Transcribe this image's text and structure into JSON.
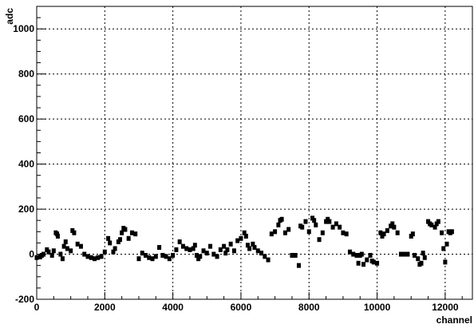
{
  "chart_data": {
    "type": "scatter",
    "title": "",
    "xlabel": "channel",
    "ylabel": "adc",
    "xlim": [
      0,
      12800
    ],
    "ylim": [
      -200,
      1100
    ],
    "x_ticks": [
      0,
      2000,
      4000,
      6000,
      8000,
      10000,
      12000
    ],
    "y_ticks": [
      -200,
      0,
      200,
      400,
      600,
      800,
      1000
    ],
    "grid": true,
    "legend": "none",
    "series": [
      {
        "color": "#000000",
        "points": [
          [
            0,
            -15
          ],
          [
            100,
            -12
          ],
          [
            150,
            -5
          ],
          [
            200,
            0
          ],
          [
            300,
            20
          ],
          [
            350,
            10
          ],
          [
            450,
            -5
          ],
          [
            500,
            15
          ],
          [
            560,
            95
          ],
          [
            600,
            90
          ],
          [
            620,
            80
          ],
          [
            700,
            0
          ],
          [
            760,
            -20
          ],
          [
            800,
            35
          ],
          [
            850,
            55
          ],
          [
            900,
            25
          ],
          [
            1000,
            15
          ],
          [
            1050,
            105
          ],
          [
            1100,
            95
          ],
          [
            1200,
            45
          ],
          [
            1300,
            35
          ],
          [
            1400,
            0
          ],
          [
            1500,
            -10
          ],
          [
            1600,
            -15
          ],
          [
            1700,
            -20
          ],
          [
            1800,
            -15
          ],
          [
            1900,
            -10
          ],
          [
            2000,
            10
          ],
          [
            2100,
            70
          ],
          [
            2150,
            50
          ],
          [
            2250,
            10
          ],
          [
            2300,
            25
          ],
          [
            2400,
            55
          ],
          [
            2450,
            65
          ],
          [
            2500,
            95
          ],
          [
            2550,
            115
          ],
          [
            2600,
            110
          ],
          [
            2700,
            70
          ],
          [
            2800,
            95
          ],
          [
            2900,
            90
          ],
          [
            3000,
            -20
          ],
          [
            3100,
            5
          ],
          [
            3200,
            -5
          ],
          [
            3300,
            -15
          ],
          [
            3400,
            -20
          ],
          [
            3500,
            -10
          ],
          [
            3600,
            30
          ],
          [
            3700,
            -5
          ],
          [
            3800,
            -10
          ],
          [
            3900,
            -20
          ],
          [
            4000,
            -5
          ],
          [
            4100,
            20
          ],
          [
            4200,
            55
          ],
          [
            4300,
            35
          ],
          [
            4400,
            25
          ],
          [
            4500,
            20
          ],
          [
            4600,
            25
          ],
          [
            4650,
            40
          ],
          [
            4700,
            -5
          ],
          [
            4750,
            -20
          ],
          [
            4800,
            -10
          ],
          [
            4900,
            15
          ],
          [
            5000,
            5
          ],
          [
            5100,
            35
          ],
          [
            5200,
            0
          ],
          [
            5300,
            -10
          ],
          [
            5400,
            20
          ],
          [
            5500,
            35
          ],
          [
            5550,
            5
          ],
          [
            5600,
            20
          ],
          [
            5700,
            45
          ],
          [
            5800,
            15
          ],
          [
            5900,
            60
          ],
          [
            6000,
            70
          ],
          [
            6100,
            95
          ],
          [
            6150,
            80
          ],
          [
            6200,
            40
          ],
          [
            6250,
            25
          ],
          [
            6350,
            45
          ],
          [
            6400,
            30
          ],
          [
            6500,
            15
          ],
          [
            6600,
            5
          ],
          [
            6700,
            -10
          ],
          [
            6800,
            -25
          ],
          [
            6900,
            90
          ],
          [
            7000,
            100
          ],
          [
            7100,
            130
          ],
          [
            7150,
            150
          ],
          [
            7200,
            155
          ],
          [
            7300,
            95
          ],
          [
            7400,
            110
          ],
          [
            7500,
            -5
          ],
          [
            7600,
            -5
          ],
          [
            7700,
            -50
          ],
          [
            7750,
            125
          ],
          [
            7800,
            120
          ],
          [
            7900,
            145
          ],
          [
            8000,
            100
          ],
          [
            8100,
            160
          ],
          [
            8150,
            150
          ],
          [
            8200,
            130
          ],
          [
            8300,
            65
          ],
          [
            8400,
            95
          ],
          [
            8500,
            145
          ],
          [
            8550,
            155
          ],
          [
            8600,
            145
          ],
          [
            8700,
            120
          ],
          [
            8800,
            135
          ],
          [
            8900,
            120
          ],
          [
            9000,
            95
          ],
          [
            9100,
            90
          ],
          [
            9200,
            10
          ],
          [
            9300,
            0
          ],
          [
            9400,
            -5
          ],
          [
            9450,
            -40
          ],
          [
            9500,
            -5
          ],
          [
            9550,
            0
          ],
          [
            9600,
            -45
          ],
          [
            9700,
            -25
          ],
          [
            9800,
            -5
          ],
          [
            9850,
            -30
          ],
          [
            9900,
            -35
          ],
          [
            10000,
            -40
          ],
          [
            10100,
            95
          ],
          [
            10150,
            80
          ],
          [
            10200,
            90
          ],
          [
            10300,
            105
          ],
          [
            10400,
            125
          ],
          [
            10450,
            135
          ],
          [
            10500,
            120
          ],
          [
            10600,
            95
          ],
          [
            10700,
            0
          ],
          [
            10800,
            0
          ],
          [
            10900,
            0
          ],
          [
            11000,
            80
          ],
          [
            11050,
            90
          ],
          [
            11100,
            -5
          ],
          [
            11200,
            -20
          ],
          [
            11250,
            -45
          ],
          [
            11300,
            -40
          ],
          [
            11350,
            5
          ],
          [
            11400,
            -15
          ],
          [
            11500,
            145
          ],
          [
            11550,
            135
          ],
          [
            11600,
            130
          ],
          [
            11700,
            120
          ],
          [
            11750,
            135
          ],
          [
            11800,
            145
          ],
          [
            11900,
            95
          ],
          [
            11950,
            25
          ],
          [
            12000,
            -35
          ],
          [
            12050,
            45
          ],
          [
            12100,
            100
          ],
          [
            12150,
            95
          ],
          [
            12200,
            100
          ]
        ]
      }
    ]
  }
}
